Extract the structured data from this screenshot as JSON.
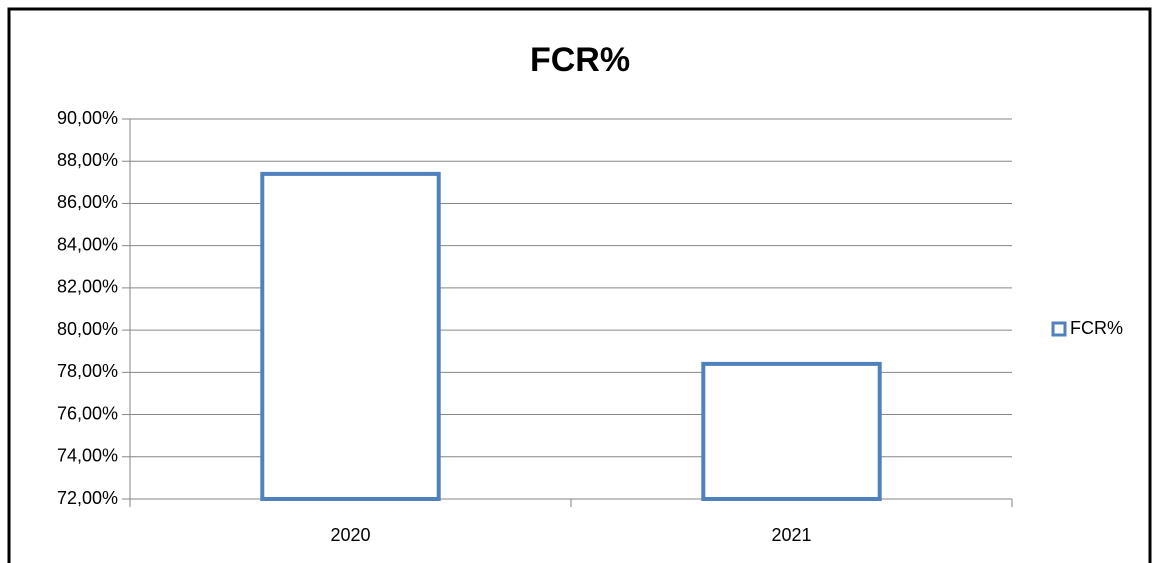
{
  "chart_data": {
    "type": "bar",
    "title": "FCR%",
    "categories": [
      "2020",
      "2021"
    ],
    "series": [
      {
        "name": "FCR%",
        "color": "#4f81bd",
        "values": [
          87.4,
          78.4
        ]
      }
    ],
    "ylim": [
      72,
      90
    ],
    "yticks": [
      {
        "value": 72,
        "label": "72,00%"
      },
      {
        "value": 74,
        "label": "74,00%"
      },
      {
        "value": 76,
        "label": "76,00%"
      },
      {
        "value": 78,
        "label": "78,00%"
      },
      {
        "value": 80,
        "label": "80,00%"
      },
      {
        "value": 82,
        "label": "82,00%"
      },
      {
        "value": 84,
        "label": "84,00%"
      },
      {
        "value": 86,
        "label": "86,00%"
      },
      {
        "value": 88,
        "label": "88,00%"
      },
      {
        "value": 90,
        "label": "90,00%"
      }
    ],
    "grid": true,
    "legend": "right"
  }
}
